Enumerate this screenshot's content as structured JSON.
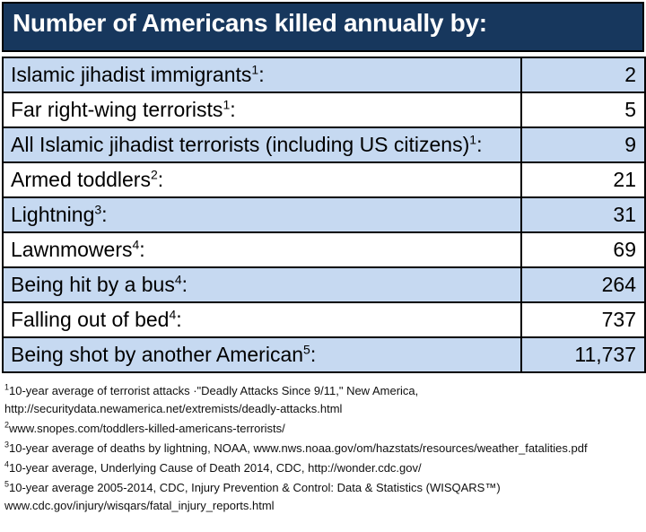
{
  "title": "Number of Americans killed annually by:",
  "colors": {
    "header_bg": "#17375D",
    "header_text": "#FFFFFF",
    "row_alt_bg": "#C6D9F1",
    "row_bg": "#FFFFFF",
    "border_color": "#000000"
  },
  "table": {
    "rows": [
      {
        "label": "Islamic jihadist immigrants",
        "marker": "1",
        "suffix": ":",
        "value": "2"
      },
      {
        "label": "Far right-wing terrorists",
        "marker": "1",
        "suffix": ":",
        "value": "5"
      },
      {
        "label": "All Islamic jihadist terrorists (including US citizens)",
        "marker": "1",
        "suffix": ":",
        "value": "9"
      },
      {
        "label": "Armed toddlers",
        "marker": "2",
        "suffix": ":",
        "value": "21"
      },
      {
        "label": "Lightning",
        "marker": "3",
        "suffix": ":",
        "value": "31"
      },
      {
        "label": "Lawnmowers",
        "marker": "4",
        "suffix": ":",
        "value": "69"
      },
      {
        "label": "Being hit by a bus",
        "marker": "4",
        "suffix": ":",
        "value": "264"
      },
      {
        "label": "Falling out of bed",
        "marker": "4",
        "suffix": ":",
        "value": "737"
      },
      {
        "label": "Being shot by another American",
        "marker": "5",
        "suffix": ":",
        "value": "11,737"
      }
    ]
  },
  "footnotes": [
    {
      "marker": "1",
      "line1": "10-year average of terrorist attacks ·\"Deadly Attacks Since 9/11,\" New America,",
      "line2": "http://securitydata.newamerica.net/extremists/deadly-attacks.html"
    },
    {
      "marker": "2",
      "line1": "www.snopes.com/toddlers-killed-americans-terrorists/",
      "line2": ""
    },
    {
      "marker": "3",
      "line1": "10-year average of deaths by lightning, NOAA, www.nws.noaa.gov/om/hazstats/resources/weather_fatalities.pdf",
      "line2": ""
    },
    {
      "marker": "4",
      "line1": "10-year average, Underlying Cause of Death 2014, CDC, http://wonder.cdc.gov/",
      "line2": ""
    },
    {
      "marker": "5",
      "line1": "10-year average 2005-2014, CDC, Injury Prevention & Control: Data & Statistics (WISQARS™)",
      "line2": "www.cdc.gov/injury/wisqars/fatal_injury_reports.html"
    }
  ],
  "chart_data": {
    "type": "table",
    "title": "Number of Americans killed annually by:",
    "categories": [
      "Islamic jihadist immigrants",
      "Far right-wing terrorists",
      "All Islamic jihadist terrorists (including US citizens)",
      "Armed toddlers",
      "Lightning",
      "Lawnmowers",
      "Being hit by a bus",
      "Falling out of bed",
      "Being shot by another American"
    ],
    "values": [
      2,
      5,
      9,
      21,
      31,
      69,
      264,
      737,
      11737
    ],
    "footnote_markers_per_row": [
      "1",
      "1",
      "1",
      "2",
      "3",
      "4",
      "4",
      "4",
      "5"
    ],
    "legend_position": "none",
    "grid": false
  }
}
